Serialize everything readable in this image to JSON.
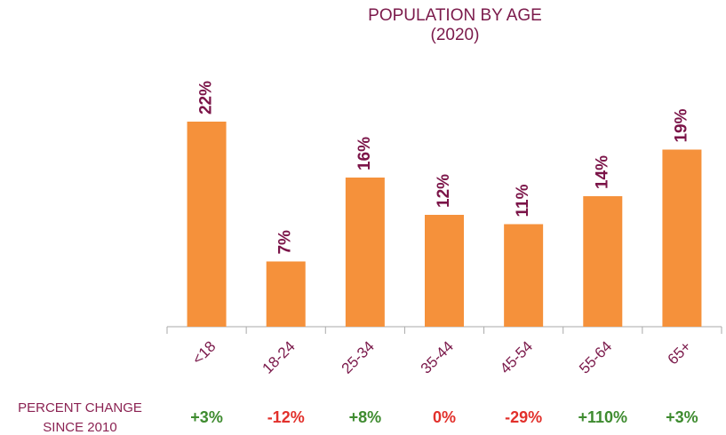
{
  "chart_data": {
    "type": "bar",
    "title": "POPULATION BY AGE",
    "subtitle": "(2020)",
    "categories": [
      "<18",
      "18-24",
      "25-34",
      "35-44",
      "45-54",
      "55-64",
      "65+"
    ],
    "values": [
      22,
      7,
      16,
      12,
      11,
      14,
      19
    ],
    "value_labels": [
      "22%",
      "7%",
      "16%",
      "12%",
      "11%",
      "14%",
      "19%"
    ],
    "color": "#f5913b",
    "change_label": [
      "PERCENT CHANGE",
      "SINCE 2010"
    ],
    "changes": {
      "values": [
        3,
        -12,
        8,
        0,
        -29,
        110,
        3
      ],
      "value_labels": [
        "+3%",
        "-12%",
        "+8%",
        "0%",
        "-29%",
        "+110%",
        "+3%"
      ],
      "colors": [
        "#3e8b2f",
        "#e2302b",
        "#3e8b2f",
        "#e2302b",
        "#e2302b",
        "#3e8b2f",
        "#3e8b2f"
      ]
    }
  }
}
